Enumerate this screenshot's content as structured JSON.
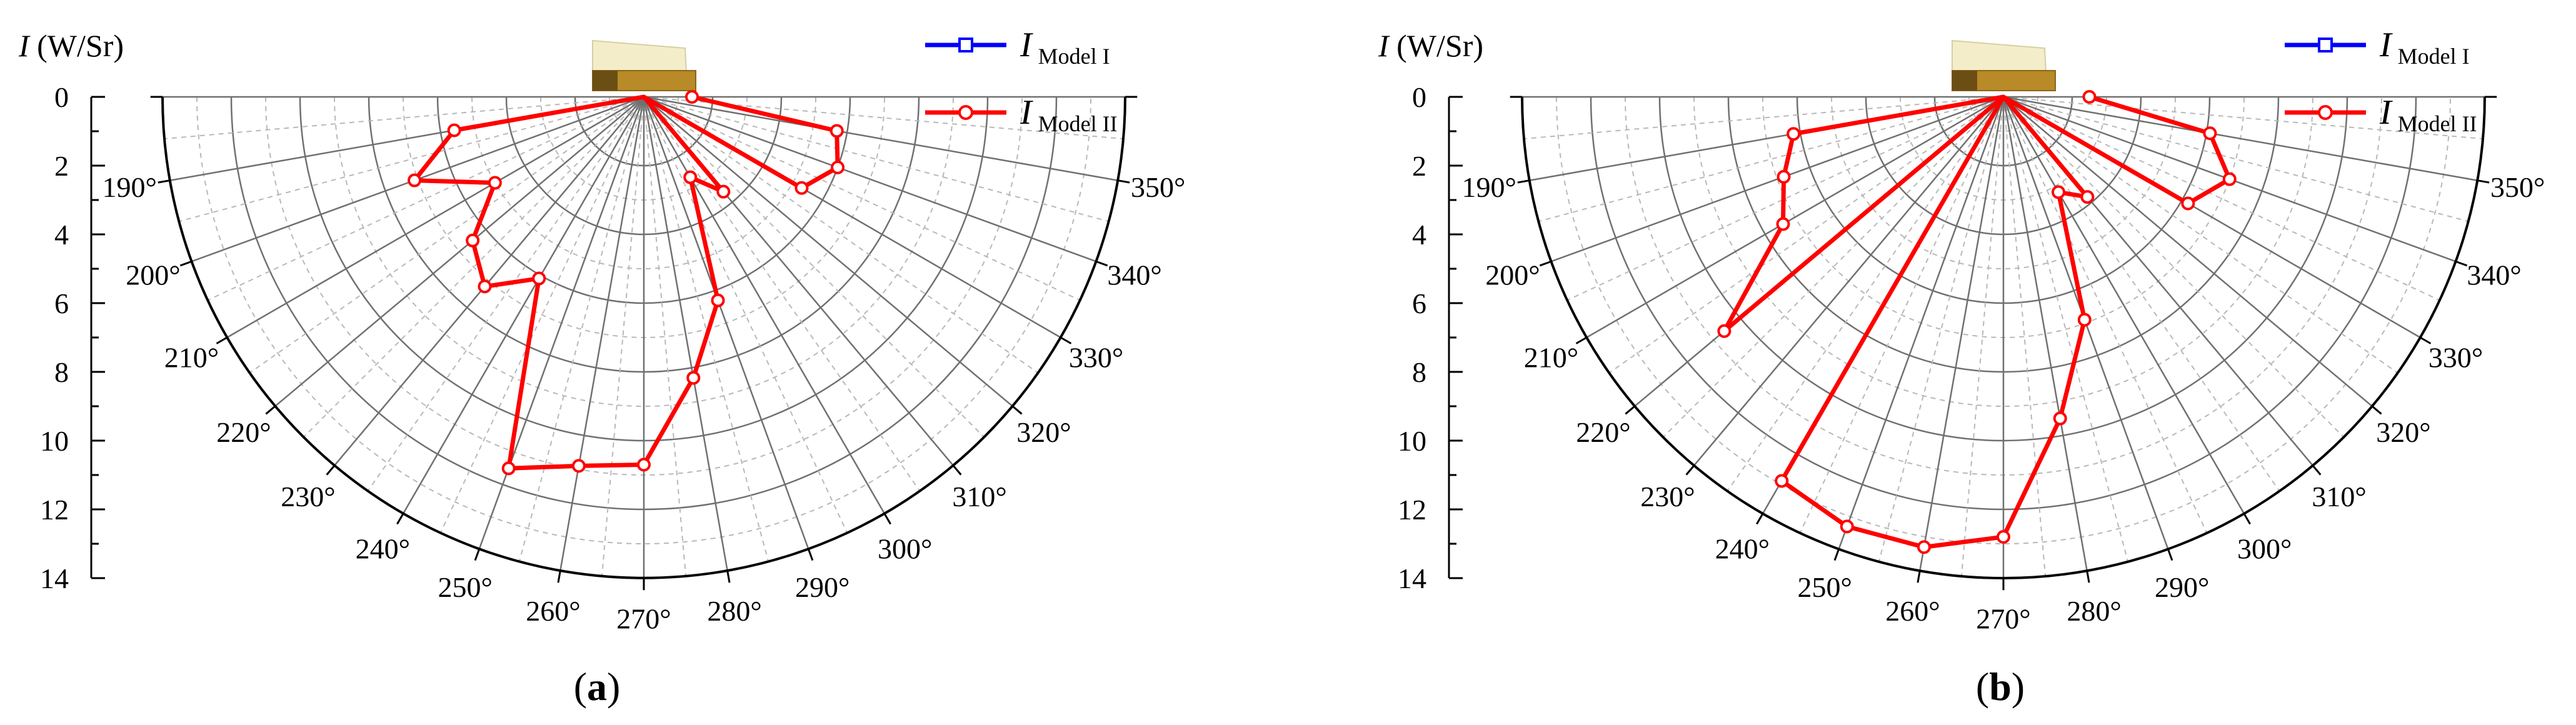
{
  "figure": {
    "panels": [
      {
        "label": "a"
      },
      {
        "label": "b"
      }
    ]
  },
  "chart_data": [
    {
      "panel": "a",
      "type": "polar-line",
      "title": "",
      "ylabel_symbol": "I",
      "ylabel_unit": "(W/Sr)",
      "r_ticks": [
        "0",
        "2",
        "4",
        "6",
        "8",
        "10",
        "12",
        "14"
      ],
      "rlim": [
        0,
        14
      ],
      "theta_ticks": [
        "190°",
        "200°",
        "210°",
        "220°",
        "230°",
        "240°",
        "250°",
        "260°",
        "270°",
        "280°",
        "290°",
        "300°",
        "310°",
        "320°",
        "330°",
        "340°",
        "350°"
      ],
      "theta_range_deg": [
        180,
        360
      ],
      "grid": true,
      "legend_position": "top-right",
      "legend": [
        {
          "symbol": "I",
          "subscript": "Model I",
          "color": "#0000ff",
          "marker": "square"
        },
        {
          "symbol": "I",
          "subscript": "Model II",
          "color": "#ff0000",
          "marker": "circle"
        }
      ],
      "series": [
        {
          "name": "I Model II",
          "color": "#ff0000",
          "theta": [
            180,
            190,
            200,
            210,
            220,
            230,
            240,
            250,
            260,
            270,
            280,
            290,
            300,
            310,
            320,
            330,
            340,
            350,
            360
          ],
          "r": [
            0,
            5.6,
            7.1,
            5.0,
            6.5,
            7.2,
            6.1,
            11.5,
            10.9,
            10.7,
            8.3,
            6.3,
            2.7,
            3.6,
            0,
            5.3,
            6.0,
            5.7,
            1.4
          ]
        }
      ]
    },
    {
      "panel": "b",
      "type": "polar-line",
      "title": "",
      "ylabel_symbol": "I",
      "ylabel_unit": "(W/Sr)",
      "r_ticks": [
        "0",
        "2",
        "4",
        "6",
        "8",
        "10",
        "12",
        "14"
      ],
      "rlim": [
        0,
        14
      ],
      "theta_ticks": [
        "190°",
        "200°",
        "210°",
        "220°",
        "230°",
        "240°",
        "250°",
        "260°",
        "270°",
        "280°",
        "290°",
        "300°",
        "310°",
        "320°",
        "330°",
        "340°",
        "350°"
      ],
      "theta_range_deg": [
        180,
        360
      ],
      "grid": true,
      "legend_position": "top-right",
      "legend": [
        {
          "symbol": "I",
          "subscript": "Model I",
          "color": "#0000ff",
          "marker": "square"
        },
        {
          "symbol": "I",
          "subscript": "Model II",
          "color": "#ff0000",
          "marker": "circle"
        }
      ],
      "series": [
        {
          "name": "I Model II",
          "color": "#ff0000",
          "theta": [
            180,
            190,
            200,
            210,
            220,
            230,
            240,
            250,
            260,
            270,
            280,
            290,
            300,
            310,
            320,
            330,
            340,
            350,
            360
          ],
          "r": [
            0,
            6.2,
            6.8,
            7.4,
            10.6,
            0,
            12.9,
            13.3,
            13.3,
            12.8,
            9.5,
            6.9,
            3.2,
            3.8,
            0,
            6.2,
            7.0,
            6.1,
            2.5
          ]
        }
      ]
    }
  ]
}
